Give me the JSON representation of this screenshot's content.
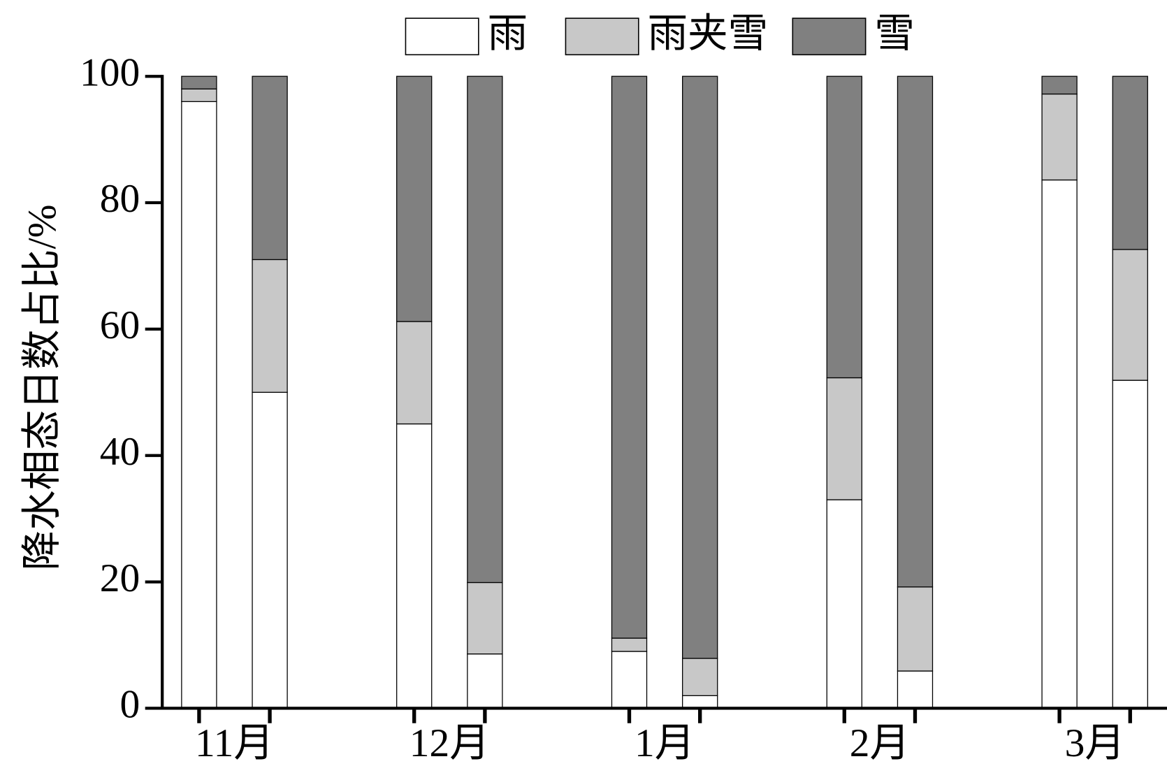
{
  "chart_data": {
    "type": "stacked_bar",
    "y_label": "降水相态日数占比/%",
    "categories": [
      "11月",
      "12月",
      "1月",
      "2月",
      "3月"
    ],
    "series": [
      {
        "name": "雨",
        "color": "#ffffff",
        "values": [
          [
            96,
            50
          ],
          [
            45,
            8.6
          ],
          [
            9,
            2
          ],
          [
            33,
            5.9
          ],
          [
            83.6,
            51.9
          ]
        ]
      },
      {
        "name": "雨夹雪",
        "color": "#c8c8c8",
        "values": [
          [
            2,
            21
          ],
          [
            16.2,
            11.3
          ],
          [
            2.1,
            5.9
          ],
          [
            19.3,
            13.3
          ],
          [
            13.6,
            20.7
          ]
        ]
      },
      {
        "name": "雪",
        "color": "#808080",
        "values": [
          [
            2,
            29
          ],
          [
            38.8,
            80.1
          ],
          [
            88.9,
            92.1
          ],
          [
            47.7,
            80.8
          ],
          [
            2.8,
            27.4
          ]
        ]
      }
    ],
    "ylim": [
      0,
      100
    ],
    "yticks": [
      0,
      20,
      40,
      60,
      80,
      100
    ]
  }
}
